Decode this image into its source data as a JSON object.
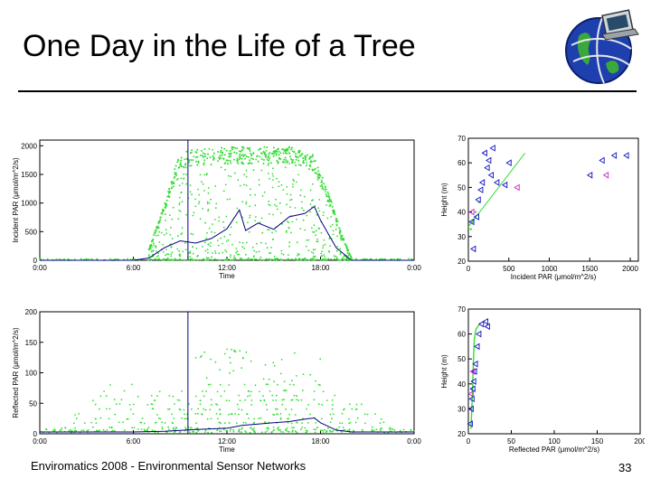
{
  "slide": {
    "title": "One Day in the Life of a Tree",
    "footer": "Enviromatics 2008 - Environmental Sensor Networks",
    "page_number": "33"
  },
  "colors": {
    "scatter": "#33dd33",
    "line": "#000080",
    "marker_blue": "#1010c0",
    "marker_magenta": "#cc22cc"
  },
  "icons": {
    "logo": "globe-laptop-icon"
  },
  "chart_data": [
    {
      "id": "incident-time",
      "type": "scatter",
      "xlabel": "Time",
      "ylabel": "Incident PAR (μmol/m^2/s)",
      "xticks": [
        "0:00",
        "6:00",
        "12:00",
        "18:00",
        "0:00"
      ],
      "xlim": [
        0,
        24
      ],
      "ylim": [
        0,
        2100
      ],
      "yticks": [
        0,
        500,
        1000,
        1500,
        2000
      ],
      "marker_line_x": 9.5,
      "envelope": [
        [
          0,
          0
        ],
        [
          6,
          0
        ],
        [
          7,
          200
        ],
        [
          8,
          1000
        ],
        [
          8.8,
          1750
        ],
        [
          9.5,
          1930
        ],
        [
          12,
          1980
        ],
        [
          16,
          1990
        ],
        [
          17.5,
          1850
        ],
        [
          18.4,
          1300
        ],
        [
          19.3,
          500
        ],
        [
          20,
          40
        ],
        [
          21,
          0
        ],
        [
          24,
          0
        ]
      ],
      "mean_series": [
        [
          0,
          0
        ],
        [
          6,
          0
        ],
        [
          7,
          40
        ],
        [
          8,
          220
        ],
        [
          9,
          340
        ],
        [
          10,
          300
        ],
        [
          11,
          380
        ],
        [
          12,
          550
        ],
        [
          12.8,
          880
        ],
        [
          13.2,
          520
        ],
        [
          14,
          650
        ],
        [
          15,
          540
        ],
        [
          16,
          760
        ],
        [
          17,
          820
        ],
        [
          17.6,
          940
        ],
        [
          18,
          700
        ],
        [
          19,
          220
        ],
        [
          19.8,
          40
        ],
        [
          20,
          0
        ],
        [
          24,
          0
        ]
      ]
    },
    {
      "id": "incident-height",
      "type": "scatter",
      "xlabel": "Incident PAR (μmol/m^2/s)",
      "ylabel": "Height (m)",
      "xlim": [
        0,
        2100
      ],
      "ylim": [
        20,
        70
      ],
      "xticks": [
        0,
        500,
        1000,
        1500,
        2000
      ],
      "yticks": [
        20,
        30,
        40,
        50,
        60,
        70
      ],
      "fit_line": [
        [
          0,
          34
        ],
        [
          700,
          64
        ]
      ],
      "points_blue": [
        [
          40,
          36
        ],
        [
          60,
          25
        ],
        [
          100,
          38
        ],
        [
          120,
          45
        ],
        [
          150,
          49
        ],
        [
          170,
          52
        ],
        [
          200,
          64
        ],
        [
          230,
          58
        ],
        [
          250,
          61
        ],
        [
          280,
          55
        ],
        [
          300,
          66
        ],
        [
          350,
          52
        ],
        [
          450,
          51
        ],
        [
          500,
          60
        ],
        [
          1500,
          55
        ],
        [
          1650,
          61
        ],
        [
          1800,
          63
        ],
        [
          1950,
          63
        ]
      ],
      "points_magenta": [
        [
          40,
          40
        ],
        [
          600,
          50
        ],
        [
          1700,
          55
        ]
      ],
      "points_green": [
        [
          30,
          33
        ],
        [
          50,
          36
        ],
        [
          90,
          40
        ],
        [
          130,
          44
        ]
      ]
    },
    {
      "id": "reflected-time",
      "type": "scatter",
      "xlabel": "Time",
      "ylabel": "Reflected PAR (μmol/m^2/s)",
      "xticks": [
        "0:00",
        "6:00",
        "12:00",
        "18:00",
        "0:00"
      ],
      "xlim": [
        0,
        24
      ],
      "ylim": [
        0,
        200
      ],
      "yticks": [
        0,
        50,
        100,
        150,
        200
      ],
      "marker_line_x": 9.5,
      "band_levels": [
        10,
        18,
        25,
        32,
        40,
        48,
        55,
        62,
        70,
        80
      ],
      "mean_series": [
        [
          0,
          3
        ],
        [
          6,
          3
        ],
        [
          8,
          4
        ],
        [
          10,
          7
        ],
        [
          12,
          9
        ],
        [
          13,
          14
        ],
        [
          14,
          16
        ],
        [
          15,
          18
        ],
        [
          16,
          20
        ],
        [
          17,
          24
        ],
        [
          17.6,
          26
        ],
        [
          18,
          18
        ],
        [
          19,
          6
        ],
        [
          20,
          3
        ],
        [
          24,
          3
        ]
      ]
    },
    {
      "id": "reflected-height",
      "type": "scatter",
      "xlabel": "Reflected PAR (μmol/m^2/s)",
      "ylabel": "Height (m)",
      "xlim": [
        0,
        200
      ],
      "ylim": [
        20,
        70
      ],
      "xticks": [
        0,
        50,
        100,
        150,
        200
      ],
      "yticks": [
        20,
        30,
        40,
        50,
        60,
        70
      ],
      "fit_curve": [
        [
          3,
          22
        ],
        [
          4,
          30
        ],
        [
          5,
          40
        ],
        [
          6,
          50
        ],
        [
          7,
          58
        ],
        [
          9,
          62
        ],
        [
          13,
          64
        ]
      ],
      "points_blue": [
        [
          2,
          24
        ],
        [
          3,
          30
        ],
        [
          4,
          34
        ],
        [
          5,
          38
        ],
        [
          6,
          41
        ],
        [
          7,
          45
        ],
        [
          8,
          48
        ],
        [
          10,
          55
        ],
        [
          12,
          60
        ],
        [
          15,
          64
        ],
        [
          20,
          65
        ],
        [
          22,
          63
        ]
      ],
      "points_magenta": [
        [
          3,
          36
        ],
        [
          5,
          45
        ]
      ]
    }
  ]
}
